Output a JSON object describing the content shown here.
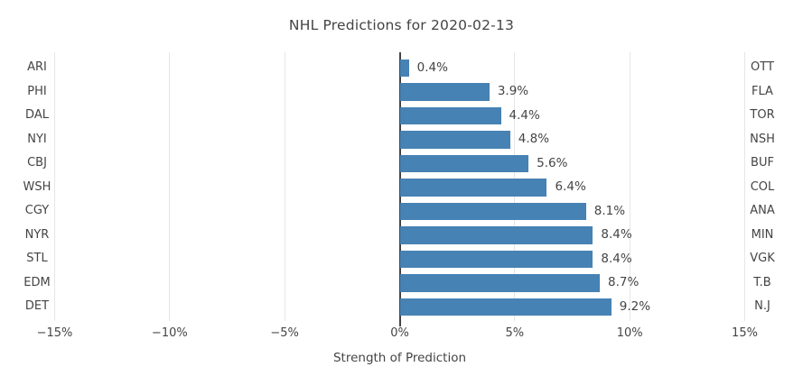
{
  "title": "NHL Predictions for 2020-02-13",
  "colors": {
    "bar": "#4682b4",
    "text": "#444444",
    "gridline": "#e6e6e6",
    "zero_line": "#444444",
    "background": "#ffffff"
  },
  "chart_data": {
    "type": "bar",
    "orientation": "horizontal",
    "title": "NHL Predictions for 2020-02-13",
    "xlabel": "Strength of Prediction",
    "xlim": [
      -15,
      15
    ],
    "grid": true,
    "categories_left": [
      "ARI",
      "PHI",
      "DAL",
      "NYI",
      "CBJ",
      "WSH",
      "CGY",
      "NYR",
      "STL",
      "EDM",
      "DET"
    ],
    "categories_right": [
      "OTT",
      "FLA",
      "TOR",
      "NSH",
      "BUF",
      "COL",
      "ANA",
      "MIN",
      "VGK",
      "T.B",
      "N.J"
    ],
    "values": [
      0.4,
      3.9,
      4.4,
      4.8,
      5.6,
      6.4,
      8.1,
      8.4,
      8.4,
      8.7,
      9.2
    ],
    "value_labels": [
      "0.4%",
      "3.9%",
      "4.4%",
      "4.8%",
      "5.6%",
      "6.4%",
      "8.1%",
      "8.4%",
      "8.4%",
      "8.7%",
      "9.2%"
    ],
    "x_ticks": [
      -15,
      -10,
      -5,
      0,
      5,
      10,
      15
    ],
    "x_tick_labels": [
      "−15%",
      "−10%",
      "−5%",
      "0%",
      "5%",
      "10%",
      "15%"
    ],
    "bar_color": "#4682b4"
  }
}
